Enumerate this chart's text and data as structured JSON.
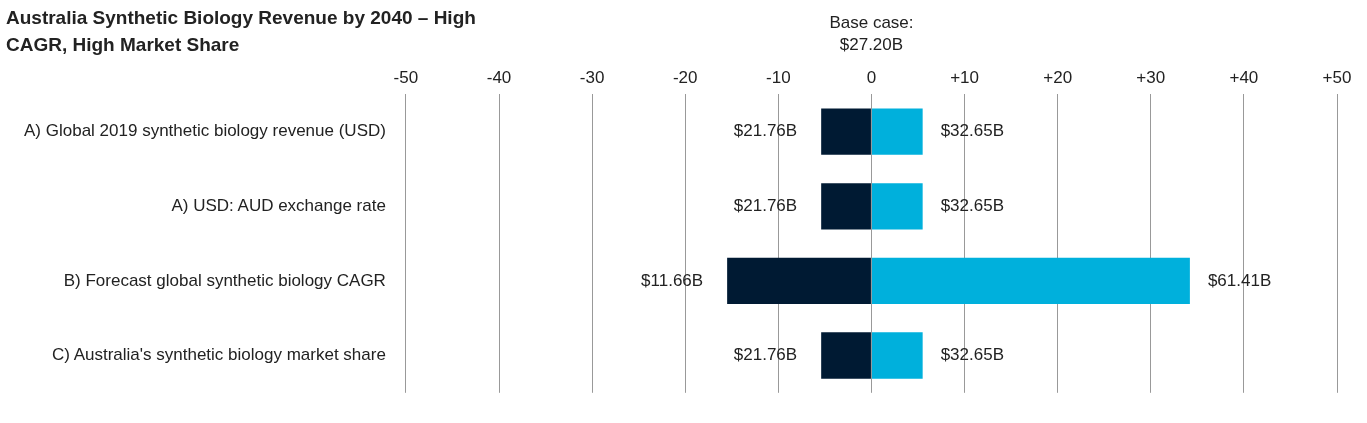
{
  "chart_data": {
    "type": "bar",
    "title": "Australia Synthetic Biology Revenue by 2040 – High CAGR, High Market Share",
    "orientation": "horizontal",
    "stacked": true,
    "categories": [
      "A) Global 2019 synthetic biology revenue (USD)",
      "A) USD: AUD exchange rate",
      "B) Forecast global synthetic biology CAGR",
      "C) Australia's synthetic biology market share"
    ],
    "series": [
      {
        "color": "#001a33",
        "values": [
          -5.4,
          -5.4,
          -15.5,
          -5.4
        ]
      },
      {
        "color": "#00b0dc",
        "values": [
          5.5,
          5.5,
          34.2,
          5.5
        ]
      }
    ],
    "xlim": [
      -50,
      50
    ],
    "xticks": [
      -50,
      -40,
      -30,
      -20,
      -10,
      0,
      {
        "value": 10,
        "label": "+10"
      },
      {
        "value": 20,
        "label": "+20"
      },
      {
        "value": 30,
        "label": "+30"
      },
      {
        "value": 40,
        "label": "+40"
      },
      {
        "value": 50,
        "label": "+50"
      }
    ],
    "grid": "x",
    "legend": false,
    "annotations": [
      "Base case: $27.20B",
      {
        "text": "$21.76B",
        "x": -5.4,
        "y": "A) Global 2019 synthetic biology revenue (USD)"
      },
      {
        "text": "$32.65B",
        "x": 5.5,
        "y": "A) Global 2019 synthetic biology revenue (USD)"
      },
      {
        "text": "$21.76B",
        "x": -5.4,
        "y": "A) USD: AUD exchange rate"
      },
      {
        "text": "$32.65B",
        "x": 5.5,
        "y": "A) USD: AUD exchange rate"
      },
      {
        "text": "$11.66B",
        "x": -15.5,
        "y": "B) Forecast global synthetic biology CAGR"
      },
      {
        "text": "$61.41B",
        "x": 34.2,
        "y": "B) Forecast global synthetic biology CAGR"
      },
      {
        "text": "$21.76B",
        "x": -5.4,
        "y": "C) Australia's synthetic biology market share"
      },
      {
        "text": "$32.65B",
        "x": 5.5,
        "y": "C) Australia's synthetic biology market share"
      }
    ]
  }
}
